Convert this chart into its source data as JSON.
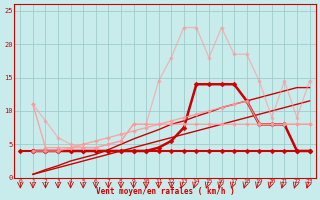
{
  "background_color": "#c8ecec",
  "grid_color": "#a0cccc",
  "xlabel": "Vent moyen/en rafales ( km/h )",
  "xlabel_color": "#cc0000",
  "tick_color": "#cc0000",
  "xlim": [
    -0.5,
    23.5
  ],
  "ylim": [
    0,
    26
  ],
  "yticks": [
    0,
    5,
    10,
    15,
    20,
    25
  ],
  "xticks": [
    0,
    1,
    2,
    3,
    4,
    5,
    6,
    7,
    8,
    9,
    10,
    11,
    12,
    13,
    14,
    15,
    16,
    17,
    18,
    19,
    20,
    21,
    22,
    23
  ],
  "lines": [
    {
      "x": [
        0,
        1,
        2,
        3,
        4,
        5,
        6,
        7,
        8,
        9,
        10,
        11,
        12,
        13,
        14,
        15,
        16,
        17,
        18,
        19,
        20,
        21,
        22,
        23
      ],
      "y": [
        4.0,
        4.0,
        4.0,
        4.0,
        4.0,
        4.0,
        4.0,
        4.0,
        4.0,
        4.0,
        4.0,
        4.0,
        4.0,
        4.0,
        4.0,
        4.0,
        4.0,
        4.0,
        4.0,
        4.0,
        4.0,
        4.0,
        4.0,
        4.0
      ],
      "color": "#cc0000",
      "alpha": 1.0,
      "lw": 1.5,
      "marker": "D",
      "ms": 2.5
    },
    {
      "x": [
        1,
        2,
        3,
        4,
        5,
        6,
        7,
        8,
        9,
        10,
        11,
        12,
        13,
        14,
        15,
        16,
        17,
        18,
        19,
        20,
        21,
        22,
        23
      ],
      "y": [
        0.5,
        1.0,
        1.5,
        2.0,
        2.5,
        3.0,
        3.5,
        4.0,
        4.5,
        5.0,
        5.5,
        6.0,
        6.5,
        7.0,
        7.5,
        8.0,
        8.5,
        9.0,
        9.5,
        10.0,
        10.5,
        11.0,
        11.5
      ],
      "color": "#cc0000",
      "alpha": 1.0,
      "lw": 1.0,
      "marker": null
    },
    {
      "x": [
        1,
        2,
        3,
        4,
        5,
        6,
        7,
        8,
        9,
        10,
        11,
        12,
        13,
        14,
        15,
        16,
        17,
        18,
        19,
        20,
        21,
        22,
        23
      ],
      "y": [
        0.5,
        1.2,
        1.8,
        2.5,
        3.0,
        3.5,
        4.2,
        5.0,
        5.8,
        6.5,
        7.2,
        8.0,
        8.5,
        9.2,
        9.8,
        10.5,
        11.0,
        11.5,
        12.0,
        12.5,
        13.0,
        13.5,
        13.5
      ],
      "color": "#cc0000",
      "alpha": 1.0,
      "lw": 1.0,
      "marker": null
    },
    {
      "x": [
        1,
        2,
        3,
        4,
        5,
        6,
        7,
        8,
        9,
        10,
        11,
        12,
        13,
        14,
        15,
        16,
        17,
        18,
        19,
        20,
        21,
        22,
        23
      ],
      "y": [
        4.0,
        4.0,
        4.0,
        4.0,
        4.0,
        4.0,
        4.0,
        4.0,
        4.0,
        4.0,
        4.5,
        5.5,
        7.5,
        14.0,
        14.0,
        14.0,
        14.0,
        11.5,
        8.0,
        8.0,
        8.0,
        4.0,
        4.0
      ],
      "color": "#cc0000",
      "alpha": 1.0,
      "lw": 1.8,
      "marker": "D",
      "ms": 2.5
    },
    {
      "x": [
        1,
        2,
        3,
        4,
        5,
        6,
        7,
        8,
        9,
        10,
        11,
        12,
        13,
        14,
        15,
        16,
        17,
        18,
        19,
        20,
        21,
        22,
        23
      ],
      "y": [
        11.0,
        4.5,
        4.5,
        4.5,
        4.5,
        4.5,
        5.0,
        5.5,
        8.0,
        8.0,
        8.0,
        8.0,
        8.0,
        8.0,
        8.0,
        8.0,
        8.0,
        8.0,
        8.0,
        8.0,
        8.0,
        8.0,
        8.0
      ],
      "color": "#ff9999",
      "alpha": 0.85,
      "lw": 1.0,
      "marker": "D",
      "ms": 2.0
    },
    {
      "x": [
        1,
        2,
        3,
        4,
        5,
        6,
        7,
        8,
        9,
        10,
        11,
        12,
        13,
        14,
        15,
        16,
        17,
        18,
        19,
        20,
        21,
        22,
        23
      ],
      "y": [
        4.0,
        4.0,
        4.0,
        4.5,
        5.0,
        5.5,
        6.0,
        6.5,
        7.0,
        7.5,
        8.0,
        8.5,
        9.0,
        9.5,
        10.0,
        10.5,
        11.0,
        11.5,
        8.0,
        8.0,
        8.0,
        8.0,
        8.0
      ],
      "color": "#ff9999",
      "alpha": 0.85,
      "lw": 1.0,
      "marker": "D",
      "ms": 2.0
    },
    {
      "x": [
        1,
        2,
        3,
        4,
        5,
        6,
        7,
        8,
        9,
        10,
        11,
        12,
        13,
        14,
        15,
        16,
        17,
        18,
        19,
        20,
        21,
        22,
        23
      ],
      "y": [
        11.0,
        8.5,
        6.0,
        5.0,
        4.5,
        4.5,
        5.0,
        5.5,
        8.0,
        8.0,
        14.5,
        18.0,
        22.5,
        22.5,
        18.0,
        22.5,
        18.5,
        18.5,
        14.5,
        9.0,
        14.5,
        9.0,
        14.5
      ],
      "color": "#ff9999",
      "alpha": 0.6,
      "lw": 1.0,
      "marker": "D",
      "ms": 2.0
    }
  ]
}
